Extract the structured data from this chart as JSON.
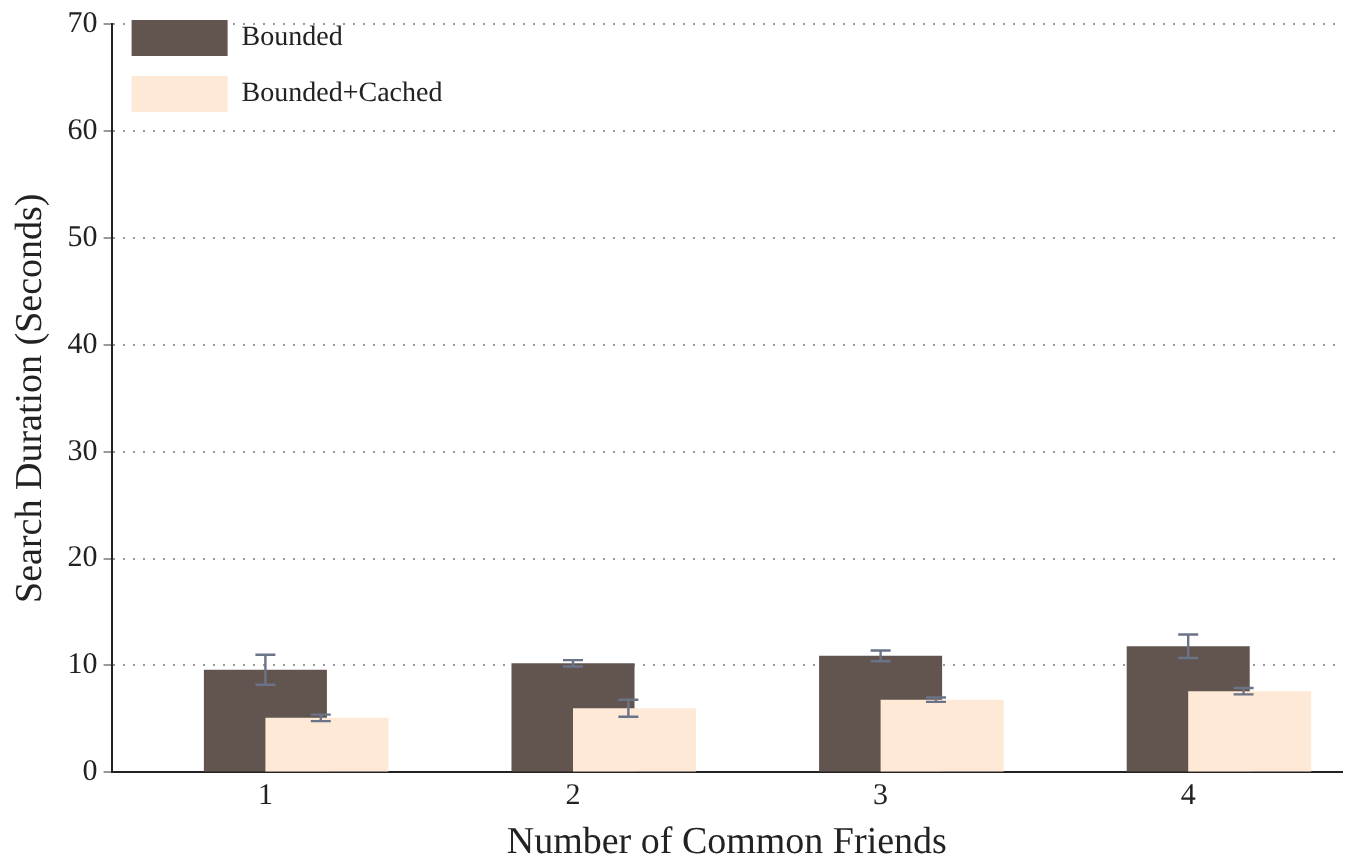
{
  "chart_data": {
    "type": "bar",
    "xlabel": "Number of Common Friends",
    "ylabel": "Search Duration (Seconds)",
    "categories": [
      "1",
      "2",
      "3",
      "4"
    ],
    "series": [
      {
        "name": "Bounded",
        "color": "#62554f",
        "values": [
          9.6,
          10.2,
          10.9,
          11.8
        ],
        "errors": [
          1.4,
          0.3,
          0.5,
          1.1
        ]
      },
      {
        "name": "Bounded+Cached",
        "color": "#fde9d5",
        "values": [
          5.1,
          6.0,
          6.8,
          7.6
        ],
        "errors": [
          0.3,
          0.8,
          0.2,
          0.3
        ]
      }
    ],
    "ylim": [
      0,
      70
    ],
    "yticks": [
      0,
      10,
      20,
      30,
      40,
      50,
      60,
      70
    ],
    "grid": "y",
    "legend": "top left"
  }
}
